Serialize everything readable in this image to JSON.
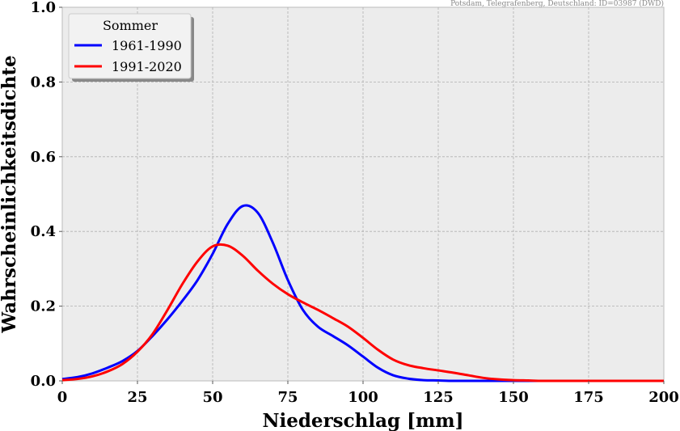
{
  "chart_data": {
    "type": "line",
    "source_note": "Potsdam, Telegrafenberg, Deutschland: ID=03987 (DWD)",
    "xlabel": "Niederschlag [mm]",
    "ylabel": "Wahrscheinlichkeitsdichte",
    "xlim": [
      0,
      200
    ],
    "ylim": [
      0,
      1.0
    ],
    "xticks": [
      0,
      25,
      50,
      75,
      100,
      125,
      150,
      175,
      200
    ],
    "xtick_labels": [
      "0",
      "25",
      "50",
      "75",
      "100",
      "125",
      "150",
      "175",
      "200"
    ],
    "yticks": [
      0,
      0.2,
      0.4,
      0.6,
      0.8,
      1.0
    ],
    "ytick_labels": [
      "0.0",
      "0.2",
      "0.4",
      "0.6",
      "0.8",
      "1.0"
    ],
    "grid": true,
    "legend": {
      "title": "Sommer",
      "placement": "top-left"
    },
    "x": [
      0,
      5,
      10,
      15,
      20,
      25,
      30,
      35,
      40,
      45,
      50,
      55,
      60,
      65,
      70,
      75,
      80,
      85,
      90,
      95,
      100,
      105,
      110,
      115,
      120,
      125,
      130,
      135,
      140,
      145,
      150,
      155,
      160,
      170,
      180,
      190,
      200
    ],
    "series": [
      {
        "name": "1961-1990",
        "color": "#0000ff",
        "values": [
          0.005,
          0.01,
          0.02,
          0.035,
          0.053,
          0.08,
          0.12,
          0.165,
          0.215,
          0.27,
          0.34,
          0.42,
          0.468,
          0.45,
          0.37,
          0.27,
          0.19,
          0.145,
          0.12,
          0.095,
          0.065,
          0.035,
          0.015,
          0.006,
          0.002,
          0.001,
          0,
          0,
          0,
          0,
          0,
          0,
          0,
          0,
          0,
          0,
          0
        ]
      },
      {
        "name": "1991-2020",
        "color": "#ff0000",
        "values": [
          0.002,
          0.005,
          0.012,
          0.025,
          0.045,
          0.078,
          0.125,
          0.19,
          0.26,
          0.32,
          0.36,
          0.362,
          0.335,
          0.295,
          0.26,
          0.232,
          0.21,
          0.19,
          0.168,
          0.145,
          0.115,
          0.083,
          0.057,
          0.042,
          0.034,
          0.028,
          0.022,
          0.015,
          0.008,
          0.004,
          0.002,
          0.001,
          0,
          0,
          0,
          0,
          0
        ]
      }
    ]
  }
}
